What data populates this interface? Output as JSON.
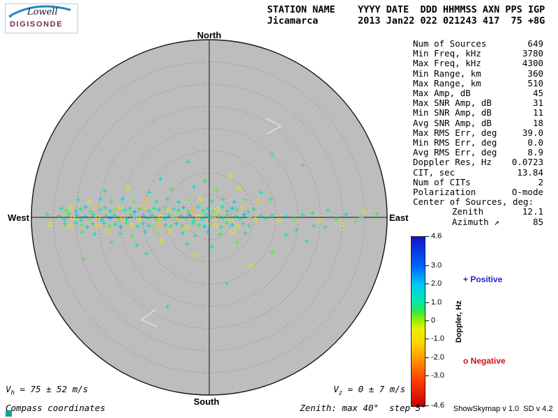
{
  "logo": {
    "brand": "Lowell",
    "product": "DIGISONDE"
  },
  "header": {
    "line1": "STATION NAME    YYYY DATE  DDD HHMMSS AXN PPS IGP",
    "line2": "Jicamarca       2013 Jan22 022 021243 417  75 +8G"
  },
  "compass": {
    "north": "North",
    "south": "South",
    "east": "East",
    "west": "West"
  },
  "stats": {
    "rows": [
      {
        "label": "Num of Sources",
        "value": "649"
      },
      {
        "label": "Min Freq, kHz",
        "value": "3780"
      },
      {
        "label": "Max Freq, kHz",
        "value": "4300"
      },
      {
        "label": "Min Range, km",
        "value": "360"
      },
      {
        "label": "Max Range, km",
        "value": "510"
      },
      {
        "label": "Max Amp, dB",
        "value": "45"
      },
      {
        "label": "Max SNR Amp, dB",
        "value": "31"
      },
      {
        "label": "Min SNR Amp, dB",
        "value": "11"
      },
      {
        "label": "Avg SNR Amp, dB",
        "value": "18"
      },
      {
        "label": "Max RMS Err, deg",
        "value": "39.0"
      },
      {
        "label": "Min RMS Err, deg",
        "value": "0.0"
      },
      {
        "label": "Avg RMS Err, deg",
        "value": "8.9"
      },
      {
        "label": "Doppler Res, Hz",
        "value": "0.0723"
      },
      {
        "label": "CIT, sec",
        "value": "13.84"
      },
      {
        "label": "Num of CITs",
        "value": "2"
      },
      {
        "label": "Polarization",
        "value": "O-mode"
      },
      {
        "label": "Center of Sources, deg:",
        "value": ""
      },
      {
        "label": "Zenith",
        "value": "12.1",
        "indent": true
      },
      {
        "label": "Azimuth ↗",
        "value": "85",
        "indent": true
      }
    ]
  },
  "colorbar": {
    "title": "Doppler, Hz",
    "max": 4.6,
    "min": -4.6,
    "ticks": [
      "4.6",
      "3.0",
      "2.0",
      "1.0",
      "0",
      "-1.0",
      "-2.0",
      "-3.0",
      "-4.6"
    ]
  },
  "legend": {
    "positive": "+ Positive",
    "negative": "o Negative",
    "positive_color": "#2222cc",
    "negative_color": "#cc1111"
  },
  "footer": {
    "vh": {
      "base": "V",
      "sub": "h",
      "rest": " = 75 ± 52 m/s"
    },
    "vz": {
      "base": "V",
      "sub": "z",
      "rest": " = 0 ± 7 m/s"
    },
    "coords_note": "Compass coordinates",
    "zenith_note": "Zenith: max 40°  step 5°",
    "version": "ShowSkymap v 1.0  SD v 4.2"
  },
  "colors": {
    "disk_fill": "#bdbdbd",
    "ring_stroke": "#808080",
    "axis_stroke": "#141414",
    "faint_arrow": "#d9d9d9",
    "corner_square": "#17a28e"
  },
  "chart_data": {
    "type": "scatter",
    "projection": "polar_skymap",
    "compass": [
      "North",
      "East",
      "South",
      "West"
    ],
    "zenith_max_deg": 40,
    "zenith_step_deg": 5,
    "doppler_axis": {
      "label": "Doppler, Hz",
      "min": -4.6,
      "max": 4.6
    },
    "marker_rules": {
      "positive": "+",
      "negative": "o"
    },
    "colormap_stops": [
      [
        -4.6,
        "#c80000"
      ],
      [
        -3.2,
        "#ff3c00"
      ],
      [
        -2.2,
        "#ff8c00"
      ],
      [
        -1.2,
        "#ffd200"
      ],
      [
        -0.4,
        "#e8f000"
      ],
      [
        0.1,
        "#8cf000"
      ],
      [
        0.6,
        "#28e65a"
      ],
      [
        1.2,
        "#00e6b4"
      ],
      [
        2.0,
        "#00c8f0"
      ],
      [
        3.0,
        "#0064ff"
      ],
      [
        4.6,
        "#1414c8"
      ]
    ],
    "points_note": "Estimated source positions as [dx,dy,doppler_hz]; dx,dy are pixel offsets from plot center (255 px = 40 deg zenith). Doppler sign selects marker (+ or o), value selects color.",
    "points": [
      [
        -215,
        -2,
        0.8
      ],
      [
        -208,
        3,
        1.4
      ],
      [
        -202,
        -5,
        0.5
      ],
      [
        -196,
        1,
        -0.6
      ],
      [
        -190,
        -3,
        1.7
      ],
      [
        -184,
        4,
        0.9
      ],
      [
        -178,
        -1,
        2.1
      ],
      [
        -172,
        2,
        0.4
      ],
      [
        -166,
        -4,
        1.2
      ],
      [
        -160,
        0,
        -0.9
      ],
      [
        -154,
        3,
        1.6
      ],
      [
        -148,
        -2,
        0.7
      ],
      [
        -142,
        1,
        2.4
      ],
      [
        -136,
        -3,
        1.0
      ],
      [
        -130,
        4,
        0.2
      ],
      [
        -124,
        -1,
        -1.2
      ],
      [
        -118,
        2,
        1.8
      ],
      [
        -112,
        -4,
        0.6
      ],
      [
        -106,
        0,
        1.3
      ],
      [
        -100,
        3,
        -0.4
      ],
      [
        -94,
        -2,
        2.0
      ],
      [
        -88,
        1,
        0.9
      ],
      [
        -82,
        -3,
        1.5
      ],
      [
        -76,
        4,
        0.3
      ],
      [
        -70,
        -1,
        -0.8
      ],
      [
        -64,
        2,
        1.1
      ],
      [
        -58,
        -4,
        1.9
      ],
      [
        -52,
        0,
        0.5
      ],
      [
        -46,
        3,
        -1.5
      ],
      [
        -40,
        -2,
        1.2
      ],
      [
        -34,
        1,
        0.8
      ],
      [
        -28,
        -3,
        2.3
      ],
      [
        -22,
        4,
        0.6
      ],
      [
        -16,
        -1,
        -0.5
      ],
      [
        -10,
        2,
        1.4
      ],
      [
        -4,
        -4,
        0.9
      ],
      [
        2,
        0,
        1.7
      ],
      [
        8,
        3,
        -1.1
      ],
      [
        14,
        -2,
        0.4
      ],
      [
        20,
        1,
        1.2
      ],
      [
        26,
        -3,
        0.7
      ],
      [
        32,
        4,
        -0.3
      ],
      [
        38,
        -1,
        1.6
      ],
      [
        44,
        2,
        0.8
      ],
      [
        50,
        -4,
        2.2
      ],
      [
        58,
        0,
        0.5
      ],
      [
        66,
        3,
        -0.9
      ],
      [
        74,
        -2,
        1.3
      ],
      [
        82,
        1,
        0.6
      ],
      [
        90,
        -3,
        1.0
      ],
      [
        100,
        4,
        -0.6
      ],
      [
        110,
        -1,
        1.5
      ],
      [
        122,
        2,
        0.3
      ],
      [
        134,
        -4,
        0.9
      ],
      [
        -212,
        -13,
        1.1
      ],
      [
        -205,
        -10,
        0.4
      ],
      [
        -198,
        -14,
        -0.7
      ],
      [
        -191,
        -9,
        1.6
      ],
      [
        -184,
        -12,
        0.8
      ],
      [
        -177,
        -15,
        2.0
      ],
      [
        -170,
        -8,
        0.5
      ],
      [
        -163,
        -13,
        -1.3
      ],
      [
        -156,
        -11,
        1.2
      ],
      [
        -149,
        -14,
        0.7
      ],
      [
        -142,
        -9,
        1.8
      ],
      [
        -135,
        -12,
        0.2
      ],
      [
        -128,
        -15,
        -0.5
      ],
      [
        -121,
        -10,
        1.4
      ],
      [
        -114,
        -13,
        0.9
      ],
      [
        -107,
        -8,
        2.3
      ],
      [
        -100,
        -12,
        0.6
      ],
      [
        -93,
        -15,
        -1.0
      ],
      [
        -86,
        -9,
        1.1
      ],
      [
        -79,
        -13,
        0.8
      ],
      [
        -72,
        -11,
        1.7
      ],
      [
        -65,
        -14,
        0.3
      ],
      [
        -58,
        -8,
        -0.8
      ],
      [
        -51,
        -12,
        1.3
      ],
      [
        -44,
        -10,
        0.6
      ],
      [
        -37,
        -14,
        1.9
      ],
      [
        -30,
        -9,
        0.4
      ],
      [
        -23,
        -12,
        -1.6
      ],
      [
        -16,
        -15,
        1.0
      ],
      [
        -9,
        -10,
        0.7
      ],
      [
        -2,
        -13,
        1.5
      ],
      [
        5,
        -8,
        0.2
      ],
      [
        12,
        -12,
        -0.4
      ],
      [
        19,
        -15,
        1.2
      ],
      [
        26,
        -9,
        0.8
      ],
      [
        33,
        -13,
        2.1
      ],
      [
        40,
        -11,
        0.5
      ],
      [
        48,
        -14,
        -1.2
      ],
      [
        56,
        -8,
        1.0
      ],
      [
        64,
        -12,
        0.6
      ],
      [
        -207,
        9,
        0.7
      ],
      [
        -199,
        12,
        -0.5
      ],
      [
        -191,
        8,
        1.3
      ],
      [
        -183,
        11,
        0.4
      ],
      [
        -175,
        14,
        1.9
      ],
      [
        -167,
        9,
        0.6
      ],
      [
        -159,
        12,
        -1.1
      ],
      [
        -151,
        8,
        1.5
      ],
      [
        -143,
        13,
        0.3
      ],
      [
        -135,
        10,
        0.9
      ],
      [
        -127,
        14,
        2.2
      ],
      [
        -119,
        8,
        0.5
      ],
      [
        -111,
        11,
        -0.7
      ],
      [
        -103,
        13,
        1.2
      ],
      [
        -95,
        9,
        0.8
      ],
      [
        -87,
        12,
        1.6
      ],
      [
        -79,
        14,
        0.2
      ],
      [
        -71,
        8,
        -1.4
      ],
      [
        -63,
        11,
        1.0
      ],
      [
        -55,
        13,
        0.6
      ],
      [
        -47,
        9,
        2.0
      ],
      [
        -39,
        12,
        0.4
      ],
      [
        -31,
        14,
        -0.6
      ],
      [
        -23,
        8,
        1.3
      ],
      [
        -15,
        11,
        0.7
      ],
      [
        -7,
        13,
        1.8
      ],
      [
        1,
        9,
        0.3
      ],
      [
        9,
        12,
        -0.9
      ],
      [
        17,
        14,
        1.1
      ],
      [
        25,
        8,
        0.5
      ],
      [
        33,
        11,
        1.6
      ],
      [
        41,
        13,
        -0.3
      ],
      [
        49,
        9,
        0.8
      ],
      [
        57,
        12,
        1.2
      ],
      [
        -188,
        -25,
        0.9
      ],
      [
        -172,
        -22,
        -0.6
      ],
      [
        -156,
        -26,
        1.4
      ],
      [
        -140,
        -23,
        0.5
      ],
      [
        -124,
        -27,
        1.8
      ],
      [
        -108,
        -22,
        0.3
      ],
      [
        -92,
        -25,
        -1.0
      ],
      [
        -76,
        -23,
        1.2
      ],
      [
        -60,
        -26,
        0.7
      ],
      [
        -44,
        -22,
        1.6
      ],
      [
        -28,
        -25,
        0.2
      ],
      [
        -12,
        -27,
        -0.5
      ],
      [
        4,
        -23,
        1.1
      ],
      [
        20,
        -26,
        0.6
      ],
      [
        36,
        -22,
        1.9
      ],
      [
        52,
        -25,
        0.4
      ],
      [
        70,
        -23,
        -1.3
      ],
      [
        88,
        -26,
        0.8
      ],
      [
        -182,
        21,
        0.6
      ],
      [
        -164,
        24,
        1.5
      ],
      [
        -146,
        20,
        -0.8
      ],
      [
        -128,
        23,
        1.0
      ],
      [
        -110,
        26,
        0.4
      ],
      [
        -92,
        21,
        1.7
      ],
      [
        -74,
        24,
        0.2
      ],
      [
        -56,
        20,
        -1.1
      ],
      [
        -38,
        23,
        1.3
      ],
      [
        -20,
        26,
        0.7
      ],
      [
        -2,
        21,
        1.9
      ],
      [
        16,
        24,
        0.5
      ],
      [
        34,
        20,
        -0.4
      ],
      [
        52,
        23,
        1.1
      ],
      [
        -150,
        -38,
        0.8
      ],
      [
        -118,
        -42,
        -0.7
      ],
      [
        -86,
        -36,
        1.3
      ],
      [
        -54,
        -40,
        0.5
      ],
      [
        -22,
        -44,
        1.6
      ],
      [
        10,
        -38,
        0.3
      ],
      [
        42,
        -41,
        -0.9
      ],
      [
        74,
        -36,
        1.1
      ],
      [
        -6,
        -52,
        0.6
      ],
      [
        -70,
        -55,
        1.4
      ],
      [
        30,
        -60,
        -0.5
      ],
      [
        -30,
        -80,
        0.9
      ],
      [
        -140,
        36,
        0.5
      ],
      [
        -104,
        40,
        1.2
      ],
      [
        -68,
        34,
        -0.6
      ],
      [
        -32,
        38,
        0.9
      ],
      [
        4,
        42,
        1.5
      ],
      [
        40,
        36,
        0.3
      ],
      [
        -90,
        52,
        0.7
      ],
      [
        -20,
        55,
        -1.0
      ],
      [
        25,
        95,
        0.8
      ],
      [
        -60,
        128,
        1.1
      ],
      [
        90,
        50,
        0.4
      ],
      [
        140,
        34,
        1.3
      ],
      [
        148,
        -6,
        0.7
      ],
      [
        158,
        4,
        -0.5
      ],
      [
        170,
        -10,
        1.2
      ],
      [
        182,
        2,
        0.5
      ],
      [
        196,
        -4,
        1.6
      ],
      [
        210,
        6,
        0.3
      ],
      [
        222,
        -8,
        -0.8
      ],
      [
        150,
        12,
        1.0
      ],
      [
        166,
        14,
        0.6
      ],
      [
        190,
        10,
        -0.3
      ],
      [
        218,
        0,
        0.9
      ],
      [
        240,
        -5,
        0.5
      ],
      [
        -232,
        -4,
        0.8
      ],
      [
        -228,
        10,
        -0.6
      ],
      [
        135,
        -75,
        0.5
      ],
      [
        90,
        -90,
        0.9
      ],
      [
        -180,
        60,
        0.4
      ],
      [
        60,
        70,
        -0.7
      ],
      [
        110,
        25,
        1.4
      ],
      [
        125,
        18,
        0.6
      ]
    ]
  }
}
